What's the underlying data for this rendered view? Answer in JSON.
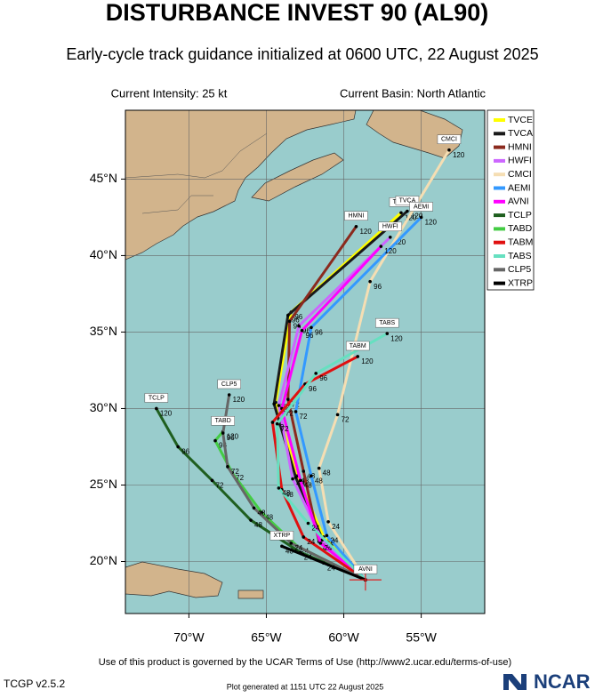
{
  "chart_data": {
    "type": "track-map",
    "title": "DISTURBANCE INVEST 90 (AL90)",
    "subtitle": "Early-cycle track guidance initialized at 0600 UTC, 22 August 2025",
    "intensity_label": "Current Intensity: 25 kt",
    "basin_label": "Current Basin: North Atlantic",
    "xlim": [
      -74.1,
      -50.9
    ],
    "ylim": [
      16.6,
      49.5
    ],
    "xticks": [
      {
        "value": -70,
        "label": "70°W"
      },
      {
        "value": -65,
        "label": "65°W"
      },
      {
        "value": -60,
        "label": "60°W"
      },
      {
        "value": -55,
        "label": "55°W"
      }
    ],
    "yticks": [
      {
        "value": 20,
        "label": "20°N"
      },
      {
        "value": 25,
        "label": "25°N"
      },
      {
        "value": 30,
        "label": "30°N"
      },
      {
        "value": 35,
        "label": "35°N"
      },
      {
        "value": 40,
        "label": "40°N"
      },
      {
        "value": 45,
        "label": "45°N"
      }
    ],
    "grid": true,
    "legend": "right",
    "series": [
      {
        "name": "TVCE",
        "color": "#ffff00",
        "x": [
          -58.6,
          -61.3,
          -63.0,
          -64.4,
          -63.4,
          -56.3
        ],
        "values": [
          18.8,
          21.6,
          25.6,
          30.4,
          36.3,
          42.8
        ],
        "hours": [
          null,
          24,
          48,
          72,
          96,
          120
        ]
      },
      {
        "name": "TVCA",
        "color": "#1a1a1a",
        "x": [
          -58.6,
          -61.4,
          -63.1,
          -64.5,
          -63.6,
          -55.9
        ],
        "values": [
          18.8,
          21.5,
          25.5,
          30.3,
          36.1,
          42.9
        ],
        "hours": [
          null,
          24,
          48,
          72,
          96,
          120
        ]
      },
      {
        "name": "HMNI",
        "color": "#8b2a1e",
        "x": [
          -58.6,
          -61.6,
          -62.6,
          -63.6,
          -63.5,
          -59.2
        ],
        "values": [
          18.8,
          21.3,
          25.9,
          30.6,
          35.7,
          41.9
        ],
        "hours": [
          null,
          24,
          48,
          72,
          96,
          120
        ]
      },
      {
        "name": "HWFI",
        "color": "#cc66ff",
        "x": [
          -58.6,
          -61.4,
          -63.3,
          -64.2,
          -62.9,
          -57.0
        ],
        "values": [
          18.8,
          21.4,
          25.4,
          30.2,
          35.4,
          41.2
        ],
        "hours": [
          null,
          24,
          48,
          72,
          96,
          120
        ]
      },
      {
        "name": "CMCI",
        "color": "#f5deb3",
        "x": [
          -58.6,
          -61.0,
          -61.6,
          -60.4,
          -58.3,
          -53.2
        ],
        "values": [
          18.8,
          22.6,
          26.1,
          29.6,
          38.3,
          46.9
        ],
        "hours": [
          null,
          24,
          48,
          72,
          96,
          120
        ]
      },
      {
        "name": "AEMI",
        "color": "#3399ff",
        "x": [
          -58.6,
          -61.1,
          -62.1,
          -63.1,
          -62.1,
          -55.0
        ],
        "values": [
          18.8,
          21.7,
          25.6,
          29.8,
          35.3,
          42.5
        ],
        "hours": [
          null,
          24,
          48,
          72,
          96,
          120
        ]
      },
      {
        "name": "AVNI",
        "color": "#ff00ff",
        "x": [
          -58.6,
          -61.5,
          -62.8,
          -64.0,
          -62.7,
          -57.6
        ],
        "values": [
          18.8,
          21.2,
          25.3,
          30.0,
          35.1,
          40.6
        ],
        "hours": [
          null,
          24,
          48,
          72,
          96,
          120
        ],
        "label_at": "start"
      },
      {
        "name": "TCLP",
        "color": "#1f5f1f",
        "x": [
          -58.6,
          -62.8,
          -66.0,
          -68.5,
          -70.7,
          -72.1
        ],
        "values": [
          18.8,
          20.6,
          22.7,
          25.3,
          27.5,
          30.0
        ],
        "hours": [
          null,
          24,
          48,
          72,
          96,
          120
        ]
      },
      {
        "name": "TABD",
        "color": "#44cc44",
        "x": [
          -58.6,
          -63.0,
          -65.3,
          -67.2,
          -68.3,
          -67.8
        ],
        "values": [
          18.8,
          21.0,
          23.2,
          25.8,
          27.9,
          28.5
        ],
        "hours": [
          null,
          24,
          48,
          72,
          96,
          120
        ]
      },
      {
        "name": "TABM",
        "color": "#e01010",
        "x": [
          -58.6,
          -62.6,
          -64.0,
          -64.6,
          -62.5,
          -59.1
        ],
        "values": [
          18.8,
          21.6,
          24.7,
          29.1,
          31.6,
          33.4
        ],
        "hours": [
          null,
          24,
          48,
          72,
          96,
          120
        ]
      },
      {
        "name": "TABS",
        "color": "#66e0c0",
        "x": [
          -58.6,
          -62.3,
          -64.2,
          -64.3,
          -61.8,
          -57.2
        ],
        "values": [
          18.8,
          22.5,
          24.8,
          29.0,
          32.3,
          34.9
        ],
        "hours": [
          null,
          24,
          48,
          72,
          96,
          120
        ]
      },
      {
        "name": "CLP5",
        "color": "#666666",
        "x": [
          -58.6,
          -63.4,
          -65.8,
          -67.5,
          -67.8,
          -67.4
        ],
        "values": [
          18.8,
          21.2,
          23.5,
          26.2,
          28.4,
          30.9
        ],
        "hours": [
          null,
          24,
          48,
          72,
          96,
          120
        ]
      },
      {
        "name": "XTRP",
        "color": "#000000",
        "x": [
          -58.6,
          -61.3,
          -64.0
        ],
        "values": [
          18.8,
          19.9,
          21.0
        ],
        "hours": [
          null,
          24,
          48
        ]
      }
    ],
    "terms": "Use of this product is governed by the UCAR Terms of Use (http://www2.ucar.edu/terms-of-use)",
    "version": "TCGP v2.5.2",
    "generated": "Plot generated at 1151 UTC  22 August 2025",
    "logo": "NCAR"
  }
}
